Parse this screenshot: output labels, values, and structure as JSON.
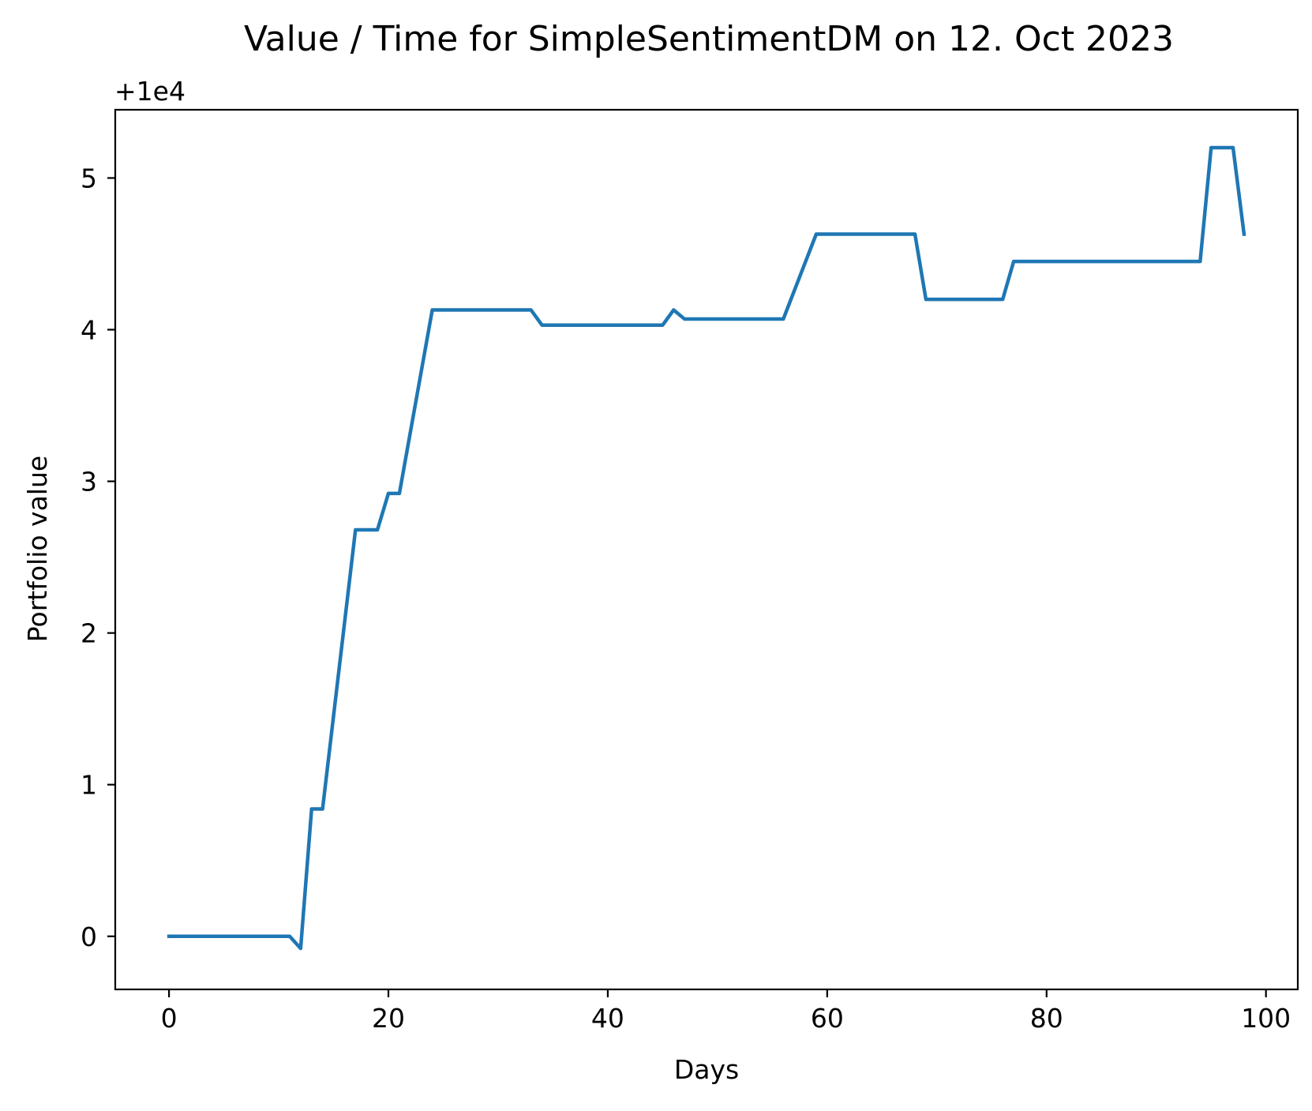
{
  "chart_data": {
    "type": "line",
    "title": "Value / Time for SimpleSentimentDM on 12. Oct 2023",
    "xlabel": "Days",
    "ylabel": "Portfolio value",
    "y_offset_label": "+1e4",
    "xlim": [
      -4.9,
      102.9
    ],
    "ylim": [
      -0.35,
      5.45
    ],
    "xticks": [
      0,
      20,
      40,
      60,
      80,
      100
    ],
    "xtick_labels": [
      "0",
      "20",
      "40",
      "60",
      "80",
      "100"
    ],
    "yticks": [
      0,
      1,
      2,
      3,
      4,
      5
    ],
    "ytick_labels": [
      "0",
      "1",
      "2",
      "3",
      "4",
      "5"
    ],
    "grid": false,
    "series": [
      {
        "color": "#1f77b4",
        "x": [
          0,
          11,
          12,
          13,
          14,
          17,
          19,
          20,
          21,
          24,
          33,
          34,
          45,
          46,
          47,
          56,
          59,
          68,
          69,
          76,
          77,
          94,
          95,
          97,
          98
        ],
        "y": [
          0,
          0,
          -0.08,
          0.84,
          0.84,
          2.68,
          2.68,
          2.92,
          2.92,
          4.13,
          4.13,
          4.03,
          4.03,
          4.13,
          4.07,
          4.07,
          4.63,
          4.63,
          4.2,
          4.2,
          4.45,
          4.45,
          5.2,
          5.2,
          4.63
        ]
      }
    ]
  }
}
